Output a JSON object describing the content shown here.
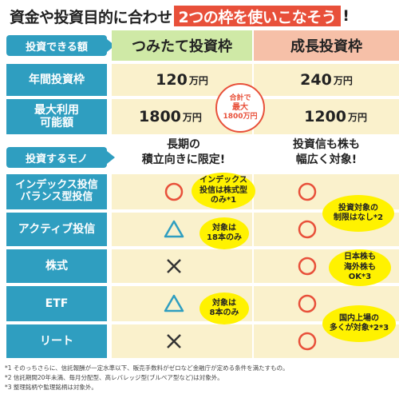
{
  "title": {
    "pre": "資金や投資目的に合わせ",
    "highlight": "2つの枠を使いこなそう",
    "suffix": "!"
  },
  "sections": {
    "amount": "投資できる額",
    "target": "投資するモノ"
  },
  "columns": {
    "a": "つみたて投資枠",
    "b": "成長投資枠"
  },
  "rows_amount": [
    {
      "label": "年間投資枠",
      "a_num": "120",
      "a_unit": "万円",
      "b_num": "240",
      "b_unit": "万円"
    },
    {
      "label_1": "最大利用",
      "label_2": "可能額",
      "a_num": "1800",
      "a_unit": "万円",
      "b_num": "1200",
      "b_unit": "万円"
    }
  ],
  "total_badge": {
    "l1": "合計で",
    "l2": "最大",
    "l3": "1800万円"
  },
  "features": {
    "a_1": "長期の",
    "a_2": "積立向きに限定!",
    "b_1": "投資信も株も",
    "b_2": "幅広く対象!"
  },
  "rows_target": [
    {
      "label_1": "インデックス投信",
      "label_2": "バランス型投信",
      "a": "circle",
      "b": "circle"
    },
    {
      "label": "アクティブ投信",
      "a": "triangle",
      "b": "circle"
    },
    {
      "label": "株式",
      "a": "cross",
      "b": "circle"
    },
    {
      "label": "ETF",
      "a": "triangle",
      "b": "circle"
    },
    {
      "label": "リート",
      "a": "cross",
      "b": "circle"
    }
  ],
  "bubbles": {
    "index_1": "インデックス",
    "index_2": "投信は株式型",
    "index_3": "のみ*1",
    "active_1": "対象は",
    "active_2": "18本のみ",
    "growth_1": "投資対象の",
    "growth_2": "制限はなし*2",
    "stock_1": "日本株も",
    "stock_2": "海外株も",
    "stock_3": "OK*3",
    "etf_1": "対象は",
    "etf_2": "8本のみ",
    "reit_1": "国内上場の",
    "reit_2": "多くが対象*2*3"
  },
  "footnotes": [
    "*1 そのっちさらに、信託報酬が一定水準以下、販売手数料がゼロなど金融庁が定める条件を満たすもの。",
    "*2 信託期間20年未満、毎月分配型、高レバレッジ型(ブルベア型など)は対象外。",
    "*3 整理銘柄や監理銘柄は対象外。"
  ],
  "colors": {
    "accent": "#e8503a",
    "blue": "#2f9ec0",
    "green": "#cfe9a6",
    "salmon": "#f6c0a8",
    "cream": "#faf1cc",
    "yellow": "#fff200"
  }
}
